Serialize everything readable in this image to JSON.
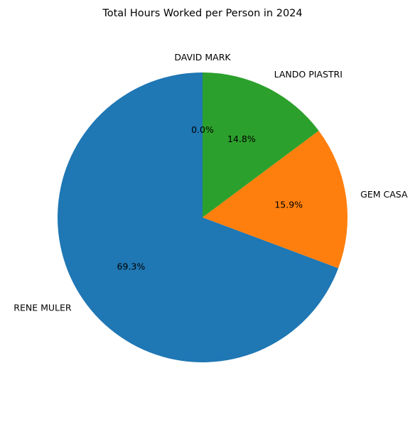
{
  "chart_data": {
    "type": "pie",
    "title": "Total Hours Worked per Person in 2024",
    "start_angle_deg": 90,
    "direction": "counterclockwise",
    "slices": [
      {
        "label": "DAVID MARK",
        "value": 0.0,
        "pct_label": "0.0%",
        "color": "#d62728"
      },
      {
        "label": "RENE MULER",
        "value": 69.3,
        "pct_label": "69.3%",
        "color": "#1f77b4"
      },
      {
        "label": "GEM CASA",
        "value": 15.9,
        "pct_label": "15.9%",
        "color": "#ff7f0e"
      },
      {
        "label": "LANDO PIASTRI",
        "value": 14.8,
        "pct_label": "14.8%",
        "color": "#2ca02c"
      }
    ]
  }
}
